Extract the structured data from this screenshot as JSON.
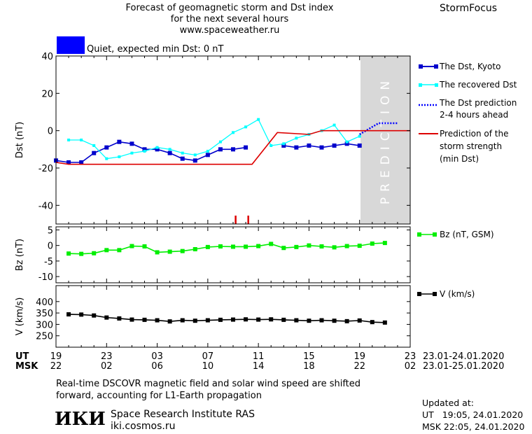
{
  "header": {
    "title_line1": "Forecast of geomagnetic storm and Dst index",
    "title_line2": "for the next several hours",
    "title_line3": "www.spaceweather.ru",
    "brand": "StormFocus"
  },
  "status": {
    "color": "#0000ff",
    "text": "Quiet, expected min Dst: 0 nT"
  },
  "prediction_label": "PREDICTION",
  "legend": {
    "dst_kyoto": "The Dst, Kyoto",
    "recovered": "The recovered Dst",
    "pred_line1": "The Dst prediction",
    "pred_line2": "2-4 hours ahead",
    "storm_line1": "Prediction of the",
    "storm_line2": "storm strength",
    "storm_line3": "(min Dst)",
    "bz": "Bz (nT, GSM)",
    "v": "V (km/s)"
  },
  "axes": {
    "ut_label": "UT",
    "msk_label": "MSK",
    "ut_ticks": [
      "19",
      "23",
      "03",
      "07",
      "11",
      "15",
      "19",
      "23"
    ],
    "msk_ticks": [
      "22",
      "02",
      "06",
      "10",
      "14",
      "18",
      "22",
      "02"
    ],
    "ut_range": "23.01-24.01.2020",
    "msk_range": "23.01-25.01.2020"
  },
  "footer": {
    "note_line1": "Real-time DSCOVR magnetic field and solar wind speed are shifted",
    "note_line2": "forward, accounting for L1-Earth propagation",
    "logo": "ИКИ",
    "institute": "Space Research Institute RAS",
    "site": "iki.cosmos.ru",
    "updated_label": "Updated at:",
    "updated_ut": "UT   19:05, 24.01.2020",
    "updated_msk": "MSK 22:05, 24.01.2020"
  },
  "colors": {
    "dst_kyoto": "#0000cc",
    "recovered": "#00ffff",
    "prediction": "#0000ff",
    "storm": "#dd0000",
    "bz": "#00ee00",
    "v": "#000000",
    "prediction_band": "#d8d8d8"
  },
  "chart_data": [
    {
      "type": "line",
      "ylabel": "Dst (nT)",
      "x_hours_range": [
        0,
        28
      ],
      "ylim": [
        -50,
        40
      ],
      "yticks": [
        -40,
        -20,
        0,
        20,
        40
      ],
      "prediction_start": 24,
      "series": [
        {
          "name": "The Dst, Kyoto",
          "x": [
            0,
            1,
            2,
            3,
            4,
            5,
            6,
            7,
            8,
            9,
            10,
            11,
            12,
            13,
            14,
            15
          ],
          "y": [
            -16,
            -17,
            -17,
            -12,
            -9,
            -6,
            -7,
            -10,
            -10,
            -12,
            -15,
            -16,
            -13,
            -10,
            -10,
            -9
          ]
        },
        {
          "name": "The Dst, Kyoto",
          "x": [
            18,
            19,
            20,
            21,
            22,
            23,
            24
          ],
          "y": [
            -8,
            -9,
            -8,
            -9,
            -8,
            -7,
            -8
          ]
        },
        {
          "name": "The recovered Dst",
          "x": [
            1,
            2,
            3,
            4,
            5,
            6,
            7,
            8,
            9,
            10,
            11,
            12,
            13,
            14,
            15,
            16,
            17,
            18,
            19,
            20,
            21,
            22,
            23,
            24
          ],
          "y": [
            -5,
            -5,
            -8,
            -15,
            -14,
            -12,
            -11,
            -9,
            -10,
            -12,
            -13,
            -11,
            -6,
            -1,
            2,
            6,
            -8,
            -7,
            -4,
            -2,
            0,
            3,
            -6,
            -3
          ]
        },
        {
          "name": "The Dst prediction",
          "x": [
            24,
            25,
            25.5,
            27
          ],
          "y": [
            -2,
            2,
            4,
            4
          ]
        },
        {
          "name": "Prediction of the storm strength",
          "x": [
            0,
            1,
            15.5,
            17.5,
            20,
            21,
            24,
            28
          ],
          "y": [
            -17,
            -18,
            -18,
            -1,
            -2,
            0,
            0,
            0
          ]
        }
      ],
      "markers_x": [
        14.2,
        15.2
      ]
    },
    {
      "type": "line",
      "ylabel": "Bz (nT)",
      "ylim": [
        -12,
        6
      ],
      "yticks": [
        -10,
        -5,
        0,
        5
      ],
      "series": [
        {
          "name": "Bz (nT, GSM)",
          "x": [
            1,
            2,
            3,
            4,
            5,
            6,
            7,
            8,
            9,
            10,
            11,
            12,
            13,
            14,
            15,
            16,
            17,
            18,
            19,
            20,
            21,
            22,
            23,
            24,
            25,
            26
          ],
          "y": [
            -2.6,
            -2.7,
            -2.5,
            -1.5,
            -1.5,
            -0.2,
            -0.3,
            -2.2,
            -2.0,
            -1.8,
            -1.2,
            -0.5,
            -0.3,
            -0.4,
            -0.4,
            -0.2,
            0.5,
            -0.8,
            -0.5,
            0.0,
            -0.3,
            -0.6,
            -0.2,
            -0.1,
            0.6,
            0.8
          ]
        }
      ]
    },
    {
      "type": "line",
      "ylabel": "V (km/s)",
      "ylim": [
        200,
        470
      ],
      "yticks": [
        250,
        300,
        350,
        400
      ],
      "series": [
        {
          "name": "V (km/s)",
          "x": [
            1,
            2,
            3,
            4,
            5,
            6,
            7,
            8,
            9,
            10,
            11,
            12,
            13,
            14,
            15,
            16,
            17,
            18,
            19,
            20,
            21,
            22,
            23,
            24,
            25,
            26
          ],
          "y": [
            344,
            343,
            339,
            330,
            326,
            321,
            320,
            318,
            313,
            318,
            316,
            318,
            320,
            321,
            322,
            321,
            322,
            320,
            318,
            316,
            318,
            316,
            314,
            317,
            310,
            308
          ]
        }
      ]
    }
  ]
}
